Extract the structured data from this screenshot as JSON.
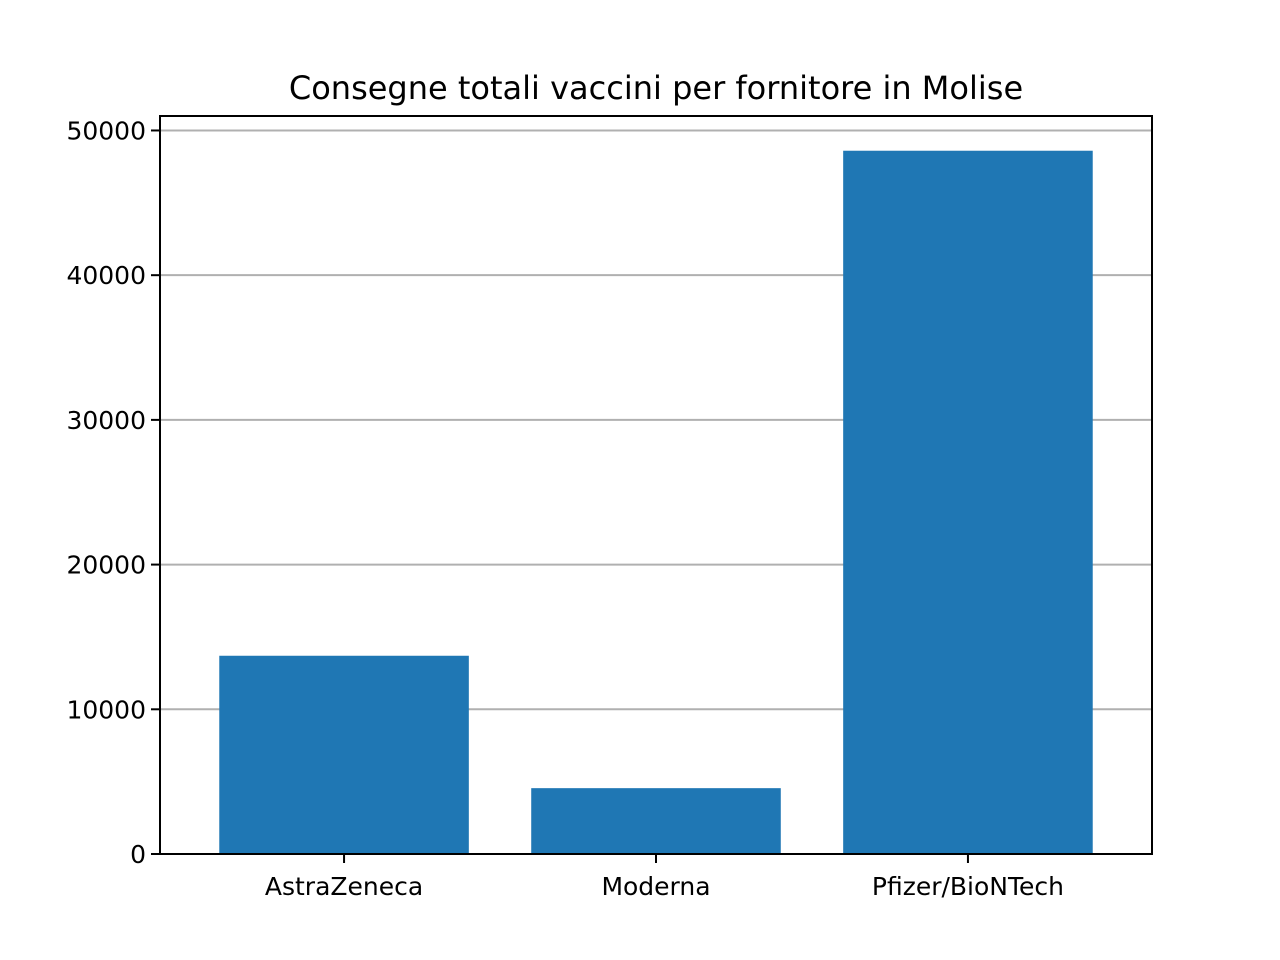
{
  "chart_data": {
    "type": "bar",
    "title": "Consegne totali vaccini per fornitore in Molise",
    "xlabel": "",
    "ylabel": "",
    "categories": [
      "AstraZeneca",
      "Moderna",
      "Pfizer/BioNTech"
    ],
    "values": [
      13700,
      4550,
      48600
    ],
    "ylim": [
      0,
      51000
    ],
    "yticks": [
      0,
      10000,
      20000,
      30000,
      40000,
      50000
    ],
    "grid": "horizontal",
    "bar_color": "#1f77b4"
  }
}
